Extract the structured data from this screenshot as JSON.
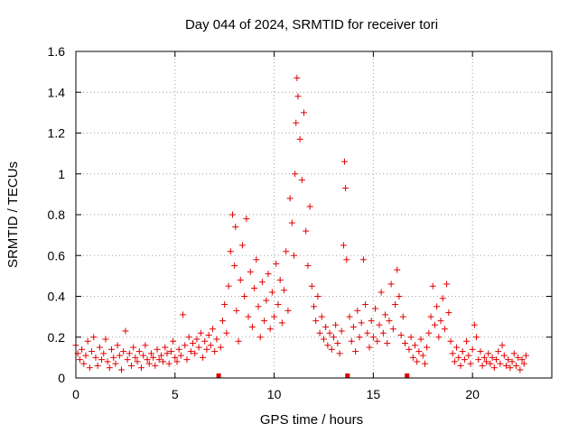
{
  "chart_data": {
    "type": "scatter",
    "title": "Day 044 of 2024, SRMTID for receiver tori",
    "xlabel": "GPS time / hours",
    "ylabel": "SRMTID / TECUs",
    "xlim": [
      0,
      24
    ],
    "ylim": [
      0,
      1.6
    ],
    "x_ticks": [
      0,
      5,
      10,
      15,
      20
    ],
    "y_ticks": [
      0,
      0.2,
      0.4,
      0.6,
      0.8,
      1,
      1.2,
      1.4,
      1.6
    ],
    "x_tick_labels": [
      "0",
      "5",
      "10",
      "15",
      "20"
    ],
    "y_tick_labels": [
      "0",
      "0.2",
      "0.4",
      "0.6",
      "0.8",
      "1",
      "1.2",
      "1.4",
      "1.6"
    ],
    "grid": true,
    "marker": "+",
    "color": "#e00000",
    "gap_markers_x": [
      7.2,
      13.7,
      16.7
    ],
    "series": [
      {
        "name": "SRMTID",
        "points": [
          [
            0.0,
            0.16
          ],
          [
            0.1,
            0.12
          ],
          [
            0.2,
            0.09
          ],
          [
            0.3,
            0.14
          ],
          [
            0.4,
            0.07
          ],
          [
            0.5,
            0.11
          ],
          [
            0.6,
            0.18
          ],
          [
            0.7,
            0.05
          ],
          [
            0.8,
            0.13
          ],
          [
            0.9,
            0.2
          ],
          [
            1.0,
            0.1
          ],
          [
            1.1,
            0.06
          ],
          [
            1.2,
            0.15
          ],
          [
            1.3,
            0.09
          ],
          [
            1.4,
            0.12
          ],
          [
            1.5,
            0.19
          ],
          [
            1.6,
            0.08
          ],
          [
            1.7,
            0.05
          ],
          [
            1.8,
            0.14
          ],
          [
            1.9,
            0.1
          ],
          [
            2.0,
            0.07
          ],
          [
            2.1,
            0.16
          ],
          [
            2.2,
            0.11
          ],
          [
            2.3,
            0.04
          ],
          [
            2.4,
            0.13
          ],
          [
            2.5,
            0.23
          ],
          [
            2.6,
            0.09
          ],
          [
            2.7,
            0.12
          ],
          [
            2.8,
            0.06
          ],
          [
            2.9,
            0.15
          ],
          [
            3.0,
            0.1
          ],
          [
            3.1,
            0.08
          ],
          [
            3.2,
            0.13
          ],
          [
            3.3,
            0.05
          ],
          [
            3.4,
            0.11
          ],
          [
            3.5,
            0.16
          ],
          [
            3.6,
            0.09
          ],
          [
            3.7,
            0.07
          ],
          [
            3.8,
            0.12
          ],
          [
            3.9,
            0.1
          ],
          [
            4.0,
            0.06
          ],
          [
            4.1,
            0.14
          ],
          [
            4.2,
            0.09
          ],
          [
            4.3,
            0.11
          ],
          [
            4.4,
            0.08
          ],
          [
            4.5,
            0.15
          ],
          [
            4.6,
            0.12
          ],
          [
            4.7,
            0.07
          ],
          [
            4.8,
            0.13
          ],
          [
            4.9,
            0.18
          ],
          [
            5.0,
            0.1
          ],
          [
            5.1,
            0.08
          ],
          [
            5.2,
            0.14
          ],
          [
            5.3,
            0.11
          ],
          [
            5.4,
            0.31
          ],
          [
            5.5,
            0.16
          ],
          [
            5.6,
            0.09
          ],
          [
            5.7,
            0.2
          ],
          [
            5.8,
            0.13
          ],
          [
            5.9,
            0.17
          ],
          [
            6.0,
            0.12
          ],
          [
            6.1,
            0.19
          ],
          [
            6.2,
            0.15
          ],
          [
            6.3,
            0.22
          ],
          [
            6.4,
            0.1
          ],
          [
            6.5,
            0.18
          ],
          [
            6.6,
            0.14
          ],
          [
            6.7,
            0.21
          ],
          [
            6.8,
            0.16
          ],
          [
            6.9,
            0.24
          ],
          [
            7.0,
            0.13
          ],
          [
            7.1,
            0.19
          ],
          [
            7.3,
            0.15
          ],
          [
            7.4,
            0.28
          ],
          [
            7.5,
            0.36
          ],
          [
            7.6,
            0.22
          ],
          [
            7.7,
            0.45
          ],
          [
            7.8,
            0.62
          ],
          [
            7.9,
            0.8
          ],
          [
            8.0,
            0.55
          ],
          [
            8.05,
            0.74
          ],
          [
            8.1,
            0.33
          ],
          [
            8.2,
            0.18
          ],
          [
            8.3,
            0.48
          ],
          [
            8.4,
            0.65
          ],
          [
            8.5,
            0.4
          ],
          [
            8.6,
            0.78
          ],
          [
            8.7,
            0.3
          ],
          [
            8.8,
            0.52
          ],
          [
            8.9,
            0.25
          ],
          [
            9.0,
            0.44
          ],
          [
            9.1,
            0.58
          ],
          [
            9.2,
            0.35
          ],
          [
            9.3,
            0.2
          ],
          [
            9.4,
            0.47
          ],
          [
            9.5,
            0.28
          ],
          [
            9.6,
            0.38
          ],
          [
            9.7,
            0.51
          ],
          [
            9.8,
            0.24
          ],
          [
            9.9,
            0.42
          ],
          [
            10.0,
            0.3
          ],
          [
            10.1,
            0.56
          ],
          [
            10.2,
            0.36
          ],
          [
            10.3,
            0.48
          ],
          [
            10.4,
            0.27
          ],
          [
            10.5,
            0.43
          ],
          [
            10.6,
            0.62
          ],
          [
            10.7,
            0.33
          ],
          [
            10.8,
            0.88
          ],
          [
            10.9,
            0.76
          ],
          [
            11.0,
            0.6
          ],
          [
            11.05,
            1.0
          ],
          [
            11.1,
            1.25
          ],
          [
            11.15,
            1.47
          ],
          [
            11.2,
            1.38
          ],
          [
            11.3,
            1.17
          ],
          [
            11.4,
            0.97
          ],
          [
            11.5,
            1.3
          ],
          [
            11.6,
            0.72
          ],
          [
            11.7,
            0.55
          ],
          [
            11.8,
            0.84
          ],
          [
            11.9,
            0.45
          ],
          [
            12.0,
            0.35
          ],
          [
            12.1,
            0.28
          ],
          [
            12.2,
            0.4
          ],
          [
            12.3,
            0.22
          ],
          [
            12.4,
            0.3
          ],
          [
            12.5,
            0.19
          ],
          [
            12.6,
            0.25
          ],
          [
            12.7,
            0.16
          ],
          [
            12.8,
            0.22
          ],
          [
            12.9,
            0.14
          ],
          [
            13.0,
            0.2
          ],
          [
            13.1,
            0.26
          ],
          [
            13.2,
            0.17
          ],
          [
            13.3,
            0.12
          ],
          [
            13.4,
            0.23
          ],
          [
            13.5,
            0.65
          ],
          [
            13.55,
            1.06
          ],
          [
            13.6,
            0.93
          ],
          [
            13.65,
            0.58
          ],
          [
            13.8,
            0.3
          ],
          [
            13.9,
            0.18
          ],
          [
            14.0,
            0.25
          ],
          [
            14.1,
            0.13
          ],
          [
            14.2,
            0.33
          ],
          [
            14.3,
            0.2
          ],
          [
            14.4,
            0.27
          ],
          [
            14.5,
            0.58
          ],
          [
            14.6,
            0.36
          ],
          [
            14.7,
            0.22
          ],
          [
            14.8,
            0.15
          ],
          [
            14.9,
            0.28
          ],
          [
            15.0,
            0.2
          ],
          [
            15.1,
            0.34
          ],
          [
            15.2,
            0.18
          ],
          [
            15.3,
            0.26
          ],
          [
            15.4,
            0.42
          ],
          [
            15.5,
            0.22
          ],
          [
            15.6,
            0.31
          ],
          [
            15.7,
            0.17
          ],
          [
            15.8,
            0.28
          ],
          [
            15.9,
            0.46
          ],
          [
            16.0,
            0.24
          ],
          [
            16.1,
            0.36
          ],
          [
            16.2,
            0.53
          ],
          [
            16.3,
            0.4
          ],
          [
            16.4,
            0.21
          ],
          [
            16.5,
            0.3
          ],
          [
            16.6,
            0.17
          ],
          [
            16.8,
            0.14
          ],
          [
            16.9,
            0.2
          ],
          [
            17.0,
            0.1
          ],
          [
            17.1,
            0.16
          ],
          [
            17.2,
            0.08
          ],
          [
            17.3,
            0.13
          ],
          [
            17.4,
            0.19
          ],
          [
            17.5,
            0.11
          ],
          [
            17.6,
            0.07
          ],
          [
            17.7,
            0.15
          ],
          [
            17.8,
            0.22
          ],
          [
            17.9,
            0.3
          ],
          [
            18.0,
            0.45
          ],
          [
            18.1,
            0.26
          ],
          [
            18.2,
            0.35
          ],
          [
            18.3,
            0.2
          ],
          [
            18.4,
            0.28
          ],
          [
            18.5,
            0.39
          ],
          [
            18.6,
            0.24
          ],
          [
            18.7,
            0.46
          ],
          [
            18.8,
            0.32
          ],
          [
            18.9,
            0.18
          ],
          [
            19.0,
            0.12
          ],
          [
            19.1,
            0.08
          ],
          [
            19.2,
            0.15
          ],
          [
            19.3,
            0.1
          ],
          [
            19.4,
            0.06
          ],
          [
            19.5,
            0.13
          ],
          [
            19.6,
            0.09
          ],
          [
            19.7,
            0.18
          ],
          [
            19.8,
            0.11
          ],
          [
            19.9,
            0.07
          ],
          [
            20.0,
            0.14
          ],
          [
            20.1,
            0.26
          ],
          [
            20.2,
            0.2
          ],
          [
            20.3,
            0.09
          ],
          [
            20.4,
            0.13
          ],
          [
            20.5,
            0.06
          ],
          [
            20.6,
            0.1
          ],
          [
            20.7,
            0.08
          ],
          [
            20.8,
            0.12
          ],
          [
            20.9,
            0.07
          ],
          [
            21.0,
            0.1
          ],
          [
            21.1,
            0.05
          ],
          [
            21.2,
            0.09
          ],
          [
            21.3,
            0.13
          ],
          [
            21.4,
            0.07
          ],
          [
            21.5,
            0.16
          ],
          [
            21.6,
            0.11
          ],
          [
            21.7,
            0.06
          ],
          [
            21.8,
            0.09
          ],
          [
            21.9,
            0.05
          ],
          [
            22.0,
            0.08
          ],
          [
            22.1,
            0.12
          ],
          [
            22.2,
            0.06
          ],
          [
            22.3,
            0.1
          ],
          [
            22.4,
            0.04
          ],
          [
            22.5,
            0.09
          ],
          [
            22.6,
            0.07
          ],
          [
            22.7,
            0.11
          ]
        ]
      }
    ]
  }
}
